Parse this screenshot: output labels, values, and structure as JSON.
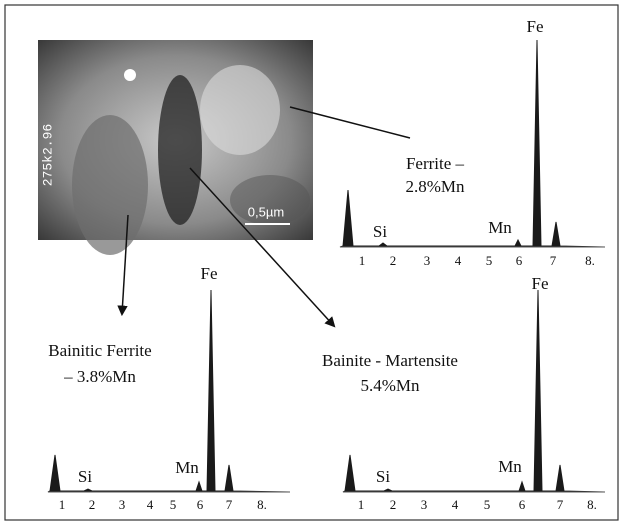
{
  "figure": {
    "micrograph": {
      "code": "275k2.96",
      "scale": "0,5µm"
    },
    "spectra": [
      {
        "phase": "Ferrite –",
        "composition": "2.8%Mn",
        "peaks": [
          "Fe",
          "Si",
          "Mn"
        ],
        "ticks": [
          "1",
          "2",
          "3",
          "4",
          "5",
          "6",
          "7",
          "8."
        ]
      },
      {
        "phase": "Bainitic Ferrite",
        "composition": "– 3.8%Mn",
        "peaks": [
          "Fe",
          "Si",
          "Mn"
        ],
        "ticks": [
          "1",
          "2",
          "3",
          "4",
          "5",
          "6",
          "7",
          "8."
        ]
      },
      {
        "phase": "Bainite - Martensite",
        "composition": "5.4%Mn",
        "peaks": [
          "Fe",
          "Si",
          "Mn"
        ],
        "ticks": [
          "1",
          "2",
          "3",
          "4",
          "5",
          "6",
          "7",
          "8."
        ]
      }
    ]
  }
}
